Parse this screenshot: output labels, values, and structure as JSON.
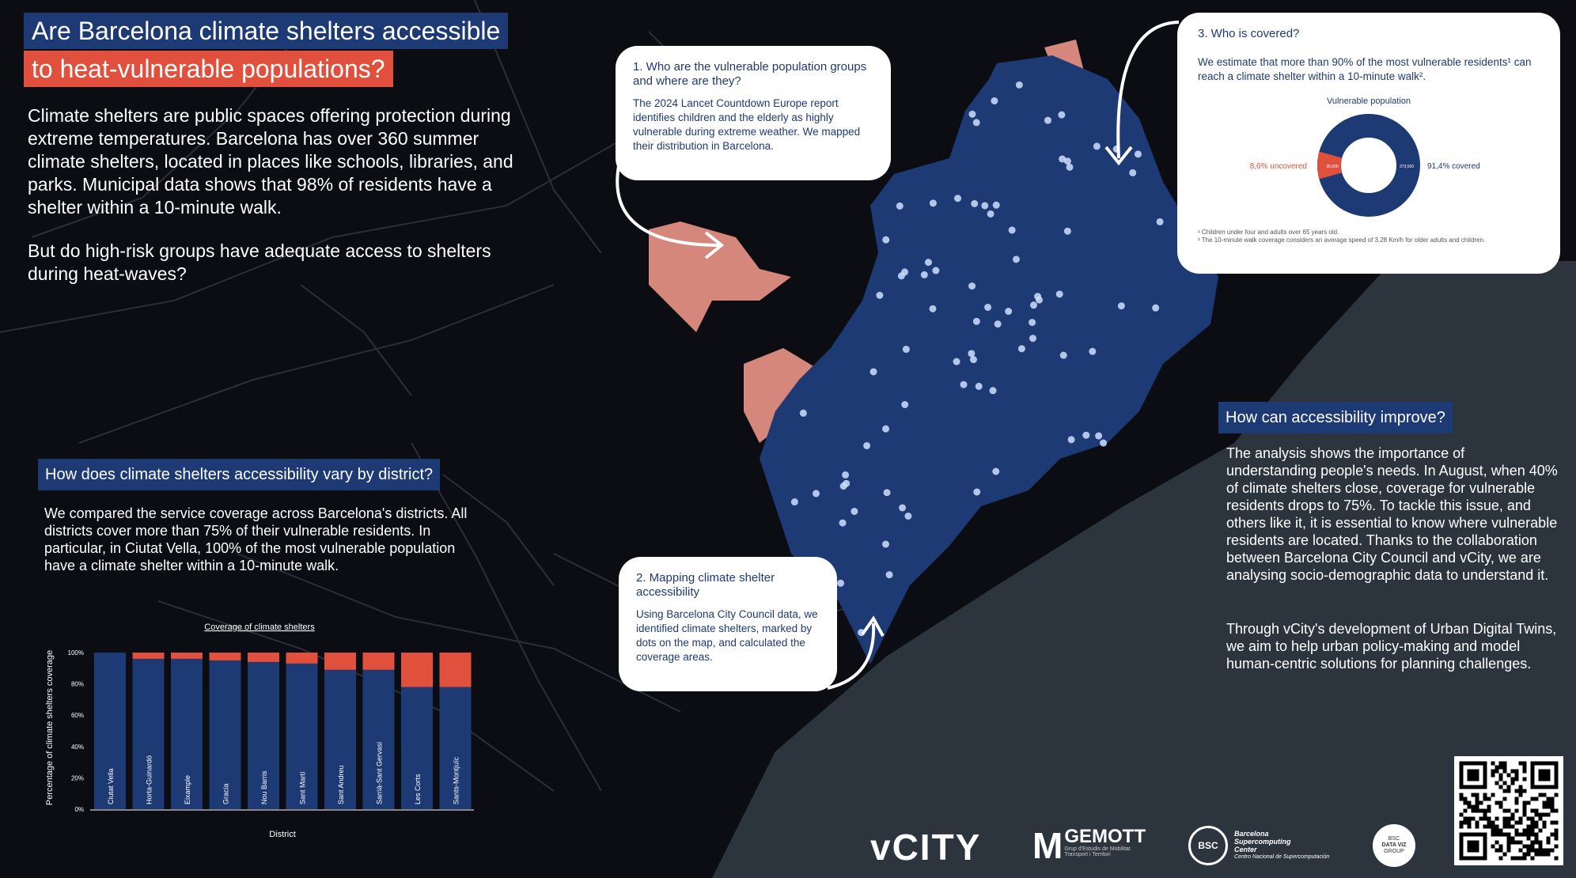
{
  "title": {
    "line1": "Are Barcelona climate shelters accessible",
    "line2": "to heat-vulnerable populations?"
  },
  "intro": {
    "p1": "Climate shelters are public spaces offering protection during extreme temperatures. Barcelona has over 360 summer climate shelters, located in places like schools, libraries, and parks. Municipal data shows that 98% of residents have a shelter within a 10-minute walk.",
    "p2": "But do high-risk groups have adequate access to shelters  during heat-waves?"
  },
  "district_section": {
    "heading": "How does climate shelters accessibility vary by district?",
    "text": "We compared the service coverage across Barcelona's districts. All districts cover more than 75% of their vulnerable residents. In particular, in Ciutat Vella, 100% of the most vulnerable population have a climate shelter within a 10-minute walk."
  },
  "card1": {
    "heading": "1. Who are the vulnerable population groups and where are they?",
    "text": "The 2024 Lancet Countdown Europe report identifies children and the elderly as highly vulnerable during extreme weather. We mapped their distribution in Barcelona."
  },
  "card2": {
    "heading": "2. Mapping climate shelter accessibility",
    "text": "Using Barcelona City Council data, we identified climate shelters, marked by dots on the map, and calculated the coverage areas."
  },
  "card3": {
    "heading": "3. Who is covered?",
    "text": "We estimate that more than 90% of the most vulnerable residents¹ can reach a climate shelter within a 10-minute walk².",
    "donut_title": "Vulnerable population",
    "uncovered_label": "8,6% uncovered",
    "uncovered_value": "35,000",
    "covered_value": "373,000",
    "covered_label": "91,4% covered",
    "footnote1": "¹ Children under four and adults over 65 years old.",
    "footnote2": "² The 10-minute walk coverage considers an average speed of 3.28 Km/h for older adults and children."
  },
  "improve_section": {
    "heading": "How can accessibility improve?",
    "p1": "The analysis shows the importance of understanding people's needs.  In August, when 40% of climate shelters close, coverage for vulnerable residents drops to 75%. To tackle this issue, and others like it, it is essential to know where vulnerable residents are located. Thanks to the collaboration between Barcelona City Council and vCity, we are analysing socio-demographic data to understand it.",
    "p2": "Through vCity's development of Urban Digital Twins, we aim to help urban policy-making and model human-centric solutions for planning challenges."
  },
  "logos": {
    "vcity": "vCITY",
    "gemott_m": "M",
    "gemott": "GEMOTT",
    "gemott_sub1": "Grup d'Estudis de Mobilitat",
    "gemott_sub2": "Transport i Territori",
    "bsc_circle": "BSC",
    "bsc1": "Barcelona",
    "bsc2": "Supercomputing",
    "bsc3": "Center",
    "bsc4": "Centro Nacional de Supercomputación",
    "dataviz1": "BSC",
    "dataviz2": "DATA VIZ",
    "dataviz3": "GROUP"
  },
  "colors": {
    "navy": "#1d3a75",
    "red": "#e0503c",
    "salmon": "#d4877a",
    "background": "#0b0d12"
  },
  "chart_data": {
    "type": "bar",
    "stacked": true,
    "title": "Coverage of climate shelters",
    "xlabel": "District",
    "ylabel": "Percentage of climate shelters coverage",
    "ylim": [
      0,
      100
    ],
    "yticks": [
      "0%",
      "20%",
      "40%",
      "60%",
      "80%",
      "100%"
    ],
    "categories": [
      "Ciutat Vella",
      "Horta-Guinardó",
      "Eixample",
      "Gracia",
      "Nou Barris",
      "Sant Martí",
      "Sant Andreu",
      "Sarrià-Sant Gervasi",
      "Les Corts",
      "Sants-Montjuïc"
    ],
    "series": [
      {
        "color": "#1d3a75",
        "values": [
          100,
          96,
          96,
          95,
          94,
          93,
          89,
          89,
          78,
          78
        ]
      },
      {
        "color": "#e0503c",
        "values": [
          0,
          4,
          4,
          5,
          6,
          7,
          11,
          11,
          22,
          22
        ]
      }
    ]
  }
}
